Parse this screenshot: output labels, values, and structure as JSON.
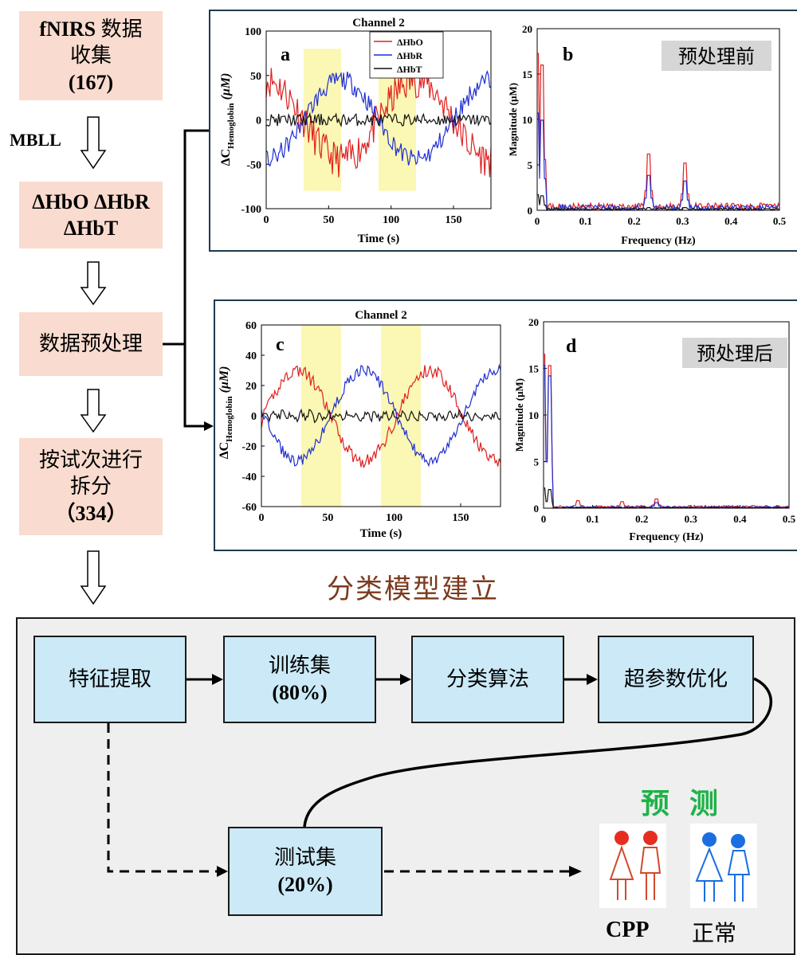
{
  "flow": {
    "step1": {
      "line1": "fNIRS",
      "line1b": " 数据",
      "line2": "收集",
      "line3": "(167)"
    },
    "mbll_label": "MBLL",
    "step2": {
      "line1": "ΔHbO ΔHbR",
      "line2": "ΔHbT"
    },
    "step3": {
      "line1": "数据预处理"
    },
    "step4": {
      "line1": "按试次进行",
      "line2": "拆分",
      "line3": "（334）"
    }
  },
  "panels": {
    "a": {
      "letter": "a",
      "title": "Channel 2",
      "xlabel": "Time (s)",
      "ylabel_main": "ΔC",
      "ylabel_sub": "Hemoglobin",
      "ylabel_unit": "(μM)"
    },
    "b": {
      "letter": "b",
      "tag": "预处理前",
      "xlabel": "Frequency (Hz)",
      "ylabel": "Magnitude (μM)"
    },
    "c": {
      "letter": "c",
      "title": "Channel 2",
      "xlabel": "Time (s)",
      "ylabel_main": "ΔC",
      "ylabel_sub": "Hemoglobin",
      "ylabel_unit": "(μM)"
    },
    "d": {
      "letter": "d",
      "tag": "预处理后",
      "xlabel": "Frequency (Hz)",
      "ylabel": "Magnitude (μM)"
    }
  },
  "legend": [
    "ΔHbO",
    "ΔHbR",
    "ΔHbT"
  ],
  "section_title": "分类模型建立",
  "pipeline": {
    "feature": "特征提取",
    "train_line1": "训练集",
    "train_line2": "(80%)",
    "algo": "分类算法",
    "hyper": "超参数优化",
    "test_line1": "测试集",
    "test_line2": "(20%)"
  },
  "prediction": {
    "title": "预 测",
    "cpp": "CPP",
    "normal": "正常"
  },
  "colors": {
    "hbo": "#e02020",
    "hbr": "#1f2fd0",
    "hbt": "#111111",
    "task_band": "#fbf7b4",
    "pink": "#f9dccf",
    "blue": "#cbe9f6",
    "pred_green": "#1fb24a",
    "title_brown": "#7b3a1e"
  },
  "chart_data": [
    {
      "type": "line",
      "panel": "a",
      "title": "Channel 2",
      "xlabel": "Time (s)",
      "ylabel": "ΔC Hemoglobin (μM)",
      "xlim": [
        0,
        180
      ],
      "ylim": [
        -100,
        100
      ],
      "xticks": [
        0,
        50,
        100,
        150
      ],
      "yticks": [
        -100,
        -50,
        0,
        50,
        100
      ],
      "task_blocks": [
        [
          30,
          60
        ],
        [
          90,
          120
        ]
      ],
      "series": [
        {
          "name": "ΔHbO"
        },
        {
          "name": "ΔHbR"
        },
        {
          "name": "ΔHbT"
        }
      ]
    },
    {
      "type": "line",
      "panel": "b",
      "xlabel": "Frequency (Hz)",
      "ylabel": "Magnitude (μM)",
      "xlim": [
        0,
        0.5
      ],
      "ylim": [
        0,
        20
      ],
      "xticks": [
        0,
        0.1,
        0.2,
        0.3,
        0.4,
        0.5
      ],
      "yticks": [
        0,
        5,
        10,
        15,
        20
      ],
      "peaks": [
        {
          "x": 0.01,
          "y": 16
        },
        {
          "x": 0.23,
          "y": 6.2
        },
        {
          "x": 0.305,
          "y": 5.2
        }
      ]
    },
    {
      "type": "line",
      "panel": "c",
      "title": "Channel 2",
      "xlabel": "Time (s)",
      "ylabel": "ΔC Hemoglobin (μM)",
      "xlim": [
        0,
        180
      ],
      "ylim": [
        -60,
        60
      ],
      "xticks": [
        0,
        50,
        100,
        150
      ],
      "yticks": [
        -60,
        -40,
        -20,
        0,
        20,
        40,
        60
      ],
      "task_blocks": [
        [
          30,
          60
        ],
        [
          90,
          120
        ]
      ]
    },
    {
      "type": "line",
      "panel": "d",
      "xlabel": "Frequency (Hz)",
      "ylabel": "Magnitude (μM)",
      "xlim": [
        0,
        0.5
      ],
      "ylim": [
        0,
        20
      ],
      "xticks": [
        0,
        0.1,
        0.2,
        0.3,
        0.4,
        0.5
      ],
      "yticks": [
        0,
        5,
        10,
        15,
        20
      ],
      "peaks": [
        {
          "x": 0.012,
          "y": 15.3
        },
        {
          "x": 0.23,
          "y": 1.0
        }
      ]
    }
  ]
}
